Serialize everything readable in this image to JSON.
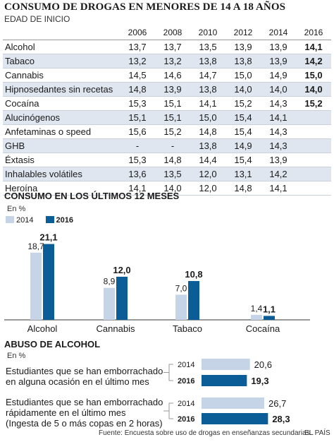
{
  "title": "CONSUMO DE DROGAS EN MENORES DE 14 A 18 AÑOS",
  "subtitle": "EDAD DE INICIO",
  "colors": {
    "light": "#c5d4e6",
    "dark": "#0a5d96",
    "shade": "#dfe6f0"
  },
  "chart_data": [
    {
      "type": "table",
      "title": "EDAD DE INICIO",
      "columns": [
        "2006",
        "2008",
        "2010",
        "2012",
        "2014",
        "2016"
      ],
      "rows": [
        {
          "name": "Alcohol",
          "values": [
            "13,7",
            "13,7",
            "13,5",
            "13,9",
            "13,9",
            "14,1"
          ]
        },
        {
          "name": "Tabaco",
          "values": [
            "13,2",
            "13,2",
            "13,8",
            "13,8",
            "13,9",
            "14,2"
          ]
        },
        {
          "name": "Cannabis",
          "values": [
            "14,5",
            "14,6",
            "14,7",
            "15,0",
            "14,9",
            "15,0"
          ]
        },
        {
          "name": "Hipnosedantes sin recetas",
          "values": [
            "14,8",
            "13,9",
            "13,8",
            "14,0",
            "14,0",
            "14,0"
          ]
        },
        {
          "name": "Cocaína",
          "values": [
            "15,3",
            "15,1",
            "14,1",
            "15,2",
            "14,3",
            "15,2"
          ]
        },
        {
          "name": "Alucinógenos",
          "values": [
            "15,1",
            "15,1",
            "15,0",
            "15,4",
            "14,1",
            ""
          ]
        },
        {
          "name": "Anfetaminas o speed",
          "values": [
            "15,6",
            "15,2",
            "14,8",
            "15,4",
            "14,3",
            ""
          ]
        },
        {
          "name": "GHB",
          "values": [
            "-",
            "-",
            "13,8",
            "14,9",
            "14,3",
            ""
          ]
        },
        {
          "name": "Éxtasis",
          "values": [
            "15,3",
            "14,8",
            "14,4",
            "15,4",
            "13,9",
            ""
          ]
        },
        {
          "name": "Inhalables volátiles",
          "values": [
            "13,6",
            "13,5",
            "12,0",
            "13,1",
            "14,2",
            ""
          ]
        },
        {
          "name": "Heroína",
          "values": [
            "14,1",
            "14,0",
            "12,0",
            "14,8",
            "14,1",
            ""
          ]
        }
      ]
    },
    {
      "type": "bar",
      "title": "CONSUMO EN LOS ÚLTIMOS 12 MESES",
      "unit": "En %",
      "categories": [
        "Alcohol",
        "Cannabis",
        "Tabaco",
        "Cocaína"
      ],
      "series": [
        {
          "name": "2014",
          "values": [
            18.7,
            8.9,
            7.0,
            1.4
          ],
          "labels": [
            "18,7",
            "8,9",
            "7,0",
            "1,4"
          ]
        },
        {
          "name": "2016",
          "values": [
            21.1,
            12.0,
            10.8,
            1.1
          ],
          "labels": [
            "21,1",
            "12,0",
            "10,8",
            "1,1"
          ]
        }
      ],
      "ylim": [
        0,
        22
      ],
      "legend": "top-left"
    },
    {
      "type": "bar",
      "orientation": "horizontal",
      "title": "ABUSO DE ALCOHOL",
      "unit": "En %",
      "groups": [
        {
          "label_lines": [
            "Estudiantes  que se han emborrachado",
            "en alguna ocasión en el último mes"
          ],
          "bars": [
            {
              "year": "2014",
              "value": 20.6,
              "label": "20,6"
            },
            {
              "year": "2016",
              "value": 19.3,
              "label": "19,3"
            }
          ]
        },
        {
          "label_lines": [
            "Estudiantes  que se han emborrachado",
            "rápidamente en el último mes",
            "(Ingesta de 5 o más copas en 2 horas)"
          ],
          "bars": [
            {
              "year": "2014",
              "value": 26.7,
              "label": "26,7"
            },
            {
              "year": "2016",
              "value": 28.3,
              "label": "28,3"
            }
          ]
        }
      ],
      "xlim": [
        0,
        30
      ]
    }
  ],
  "source": "Fuente: Encuesta sobre uso de drogas en enseñanzas secundarias..",
  "credit": "EL PAÍS"
}
